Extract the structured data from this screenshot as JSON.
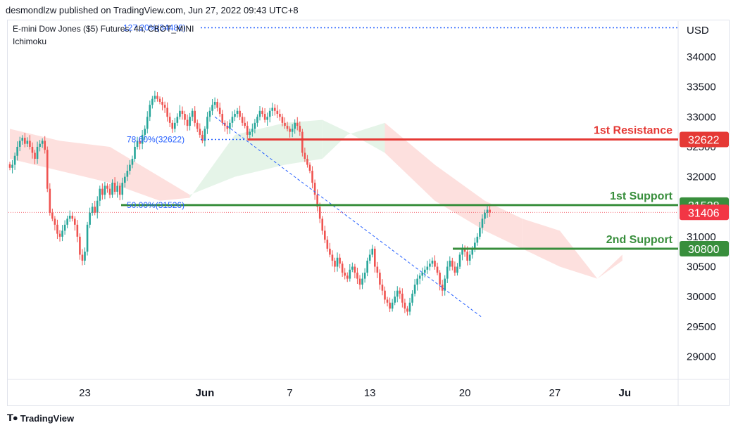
{
  "header": {
    "publisher": "desmondlzw published on TradingView.com, Jun 27, 2022 09:43 UTC+8",
    "symbol": "E-mini Dow Jones ($5) Futures, 4h, CBOT_MINI",
    "indicator": "Ichimoku"
  },
  "footer": {
    "brand": "TradingView",
    "logo_icon": "tradingview-logo-icon"
  },
  "colors": {
    "up": "#26a69a",
    "down": "#ef5350",
    "resistance": "#e53935",
    "support": "#388e3c",
    "fib": "#2962ff",
    "cloud_red": "#fde0de",
    "cloud_green": "#e5f4e8",
    "last_price": "#f23645"
  },
  "chart_data": {
    "type": "candlestick",
    "currency": "USD",
    "ylim": [
      28500,
      34500
    ],
    "y_ticks": [
      29000,
      29500,
      30000,
      30500,
      31000,
      31500,
      32000,
      32500,
      33000,
      33500,
      34000
    ],
    "x_ticks": [
      {
        "label": "23",
        "bar": 30
      },
      {
        "label": "Jun",
        "bar": 78
      },
      {
        "label": "7",
        "bar": 112
      },
      {
        "label": "13",
        "bar": 144
      },
      {
        "label": "20",
        "bar": 182
      },
      {
        "label": "27",
        "bar": 218
      },
      {
        "label": "Ju",
        "bar": 246
      }
    ],
    "levels": [
      {
        "name": "1st Resistance",
        "value": 32622,
        "label": "32622",
        "kind": "resistance"
      },
      {
        "name": "1st Support",
        "value": 31528,
        "label": "31528",
        "kind": "support"
      },
      {
        "name": "2nd Support",
        "value": 30800,
        "label": "30800",
        "kind": "support"
      }
    ],
    "last_price": {
      "value": 31406,
      "label": "31406"
    },
    "fib_levels": [
      {
        "label": "127.20%(34486)",
        "value": 34486
      },
      {
        "label": "78.60%(32622)",
        "value": 32622
      },
      {
        "label": "50.00%(31526)",
        "value": 31526
      }
    ],
    "closes": [
      32150,
      32200,
      32350,
      32500,
      32600,
      32650,
      32550,
      32600,
      32500,
      32400,
      32300,
      32500,
      32550,
      32600,
      32450,
      31800,
      31400,
      31300,
      31200,
      31050,
      31000,
      31100,
      31200,
      31300,
      31350,
      31300,
      31200,
      31000,
      30700,
      30600,
      30750,
      31200,
      31400,
      31500,
      31400,
      31600,
      31800,
      31700,
      31850,
      31800,
      31700,
      31900,
      31750,
      31850,
      31700,
      31900,
      32000,
      32100,
      32200,
      32300,
      32500,
      32600,
      32550,
      32700,
      32800,
      33000,
      33200,
      33300,
      33350,
      33300,
      33250,
      33200,
      33150,
      33000,
      32900,
      32800,
      32900,
      33000,
      33100,
      33050,
      32950,
      32850,
      33000,
      33100,
      32900,
      32800,
      32700,
      32600,
      32800,
      33000,
      33100,
      33200,
      33250,
      33150,
      33050,
      32900,
      32850,
      32800,
      32900,
      33000,
      33050,
      33100,
      33000,
      32900,
      32850,
      32700,
      32750,
      32800,
      32900,
      33000,
      33100,
      33050,
      32950,
      33000,
      33100,
      33150,
      33100,
      33050,
      33000,
      32900,
      32850,
      32800,
      32750,
      32800,
      32900,
      32850,
      32750,
      32400,
      32300,
      32200,
      32100,
      31900,
      31700,
      31500,
      31300,
      31100,
      30950,
      30800,
      30700,
      30600,
      30500,
      30650,
      30550,
      30400,
      30350,
      30300,
      30450,
      30500,
      30400,
      30300,
      30200,
      30300,
      30400,
      30600,
      30700,
      30800,
      30500,
      30400,
      30200,
      30100,
      29950,
      29900,
      29800,
      29900,
      30000,
      30100,
      30050,
      29900,
      29800,
      29750,
      29900,
      30050,
      30200,
      30300,
      30350,
      30400,
      30450,
      30500,
      30550,
      30600,
      30500,
      30400,
      30200,
      30100,
      30300,
      30500,
      30600,
      30500,
      30400,
      30500,
      30700,
      30800,
      30750,
      30600,
      30700,
      30800,
      30900,
      31000,
      31150,
      31300,
      31400,
      31450,
      31406
    ],
    "cloud": [
      {
        "x": 0,
        "a": 32800,
        "b": 32300
      },
      {
        "x": 20,
        "a": 32600,
        "b": 32100
      },
      {
        "x": 40,
        "a": 32500,
        "b": 31900
      },
      {
        "x": 60,
        "a": 32000,
        "b": 31600
      },
      {
        "x": 72,
        "a": 31700,
        "b": 31650
      },
      {
        "x": 90,
        "a": 32000,
        "b": 32700
      },
      {
        "x": 110,
        "a": 32200,
        "b": 32900
      },
      {
        "x": 125,
        "a": 32300,
        "b": 32950
      },
      {
        "x": 135,
        "a": 32700,
        "b": 32750
      },
      {
        "x": 150,
        "a": 32900,
        "b": 32400
      },
      {
        "x": 170,
        "a": 32200,
        "b": 31600
      },
      {
        "x": 190,
        "a": 31600,
        "b": 31100
      },
      {
        "x": 205,
        "a": 31300,
        "b": 30800
      },
      {
        "x": 220,
        "a": 31100,
        "b": 30500
      },
      {
        "x": 235,
        "a": 30300,
        "b": 30300
      },
      {
        "x": 245,
        "a": 30700,
        "b": 30600
      }
    ],
    "trend_line": {
      "from_bar": 82,
      "from_value": 33000,
      "to_bar": 189,
      "to_value": 29650
    }
  }
}
